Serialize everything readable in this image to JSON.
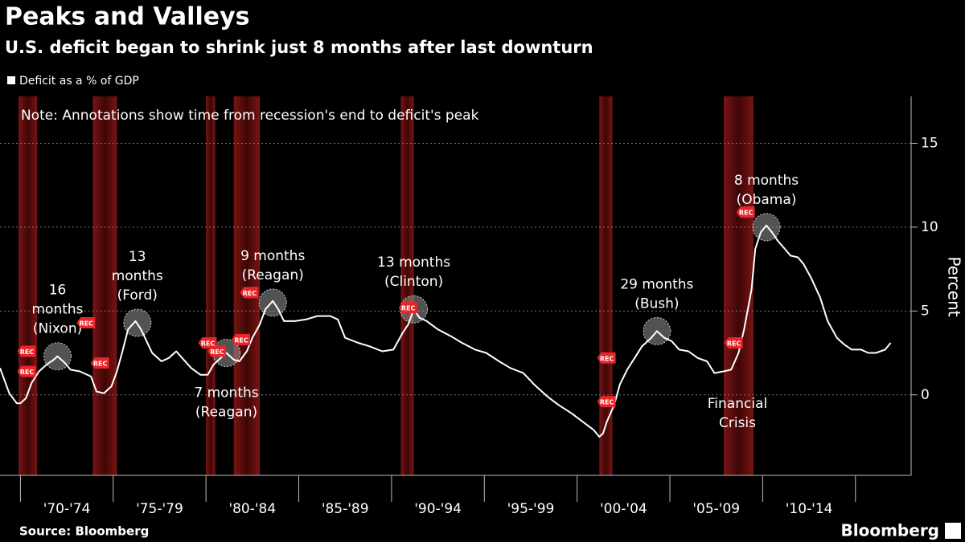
{
  "chart_data": {
    "type": "line",
    "title": "Peaks and Valleys",
    "subtitle": "U.S. deficit began to shrink just 8 months after last downturn",
    "note": "Note: Annotations show time from recession's end to deficit's peak",
    "y_label": "Percent",
    "source": "Source: Bloomberg",
    "brand": "Bloomberg",
    "xlim": [
      1968.9,
      2018
    ],
    "ylim": [
      -4.8,
      17.8
    ],
    "yticks": [
      0,
      5,
      10,
      15
    ],
    "xticks": [
      1970,
      1975,
      1980,
      1985,
      1990,
      1995,
      2000,
      2005,
      2010,
      2015
    ],
    "periods": [
      "'70-'74",
      "'75-'79",
      "'80-'84",
      "'85-'89",
      "'90-'94",
      "'95-'99",
      "'00-'04",
      "'05-'09",
      "'10-'14"
    ],
    "grid": true,
    "series": [
      {
        "name": "Deficit as a % of GDP",
        "color": "#ffffff",
        "x": [
          1968.9,
          1969.4,
          1969.8,
          1970.0,
          1970.3,
          1970.6,
          1971.0,
          1971.4,
          1971.8,
          1972.0,
          1972.4,
          1972.7,
          1973.2,
          1973.8,
          1974.1,
          1974.5,
          1974.9,
          1975.2,
          1975.5,
          1975.8,
          1976.2,
          1976.5,
          1976.8,
          1977.1,
          1977.6,
          1978.0,
          1978.4,
          1978.8,
          1979.2,
          1979.7,
          1980.1,
          1980.4,
          1980.8,
          1981.1,
          1981.5,
          1981.8,
          1982.2,
          1982.5,
          1982.9,
          1983.2,
          1983.6,
          1983.9,
          1984.2,
          1984.8,
          1985.4,
          1986.0,
          1986.7,
          1987.1,
          1987.5,
          1988.2,
          1988.8,
          1989.5,
          1990.1,
          1990.6,
          1990.9,
          1991.2,
          1991.5,
          1991.9,
          1992.5,
          1993.2,
          1993.8,
          1994.5,
          1995.1,
          1995.8,
          1996.4,
          1997.1,
          1997.7,
          1998.4,
          1999.0,
          1999.7,
          2000.3,
          2000.9,
          2001.2,
          2001.4,
          2001.6,
          2002.0,
          2002.3,
          2002.7,
          2003.1,
          2003.5,
          2004.0,
          2004.3,
          2004.7,
          2005.1,
          2005.5,
          2006.0,
          2006.5,
          2007.0,
          2007.4,
          2007.9,
          2008.3,
          2008.7,
          2009.0,
          2009.4,
          2009.6,
          2009.9,
          2010.2,
          2010.5,
          2010.8,
          2011.2,
          2011.5,
          2011.9,
          2012.2,
          2012.6,
          2013.1,
          2013.5,
          2014.0,
          2014.4,
          2014.8,
          2015.3,
          2015.7,
          2016.1,
          2016.6,
          2016.9
        ],
        "values": [
          1.6,
          0.1,
          -0.5,
          -0.5,
          -0.2,
          0.7,
          1.4,
          1.8,
          2.1,
          2.3,
          1.9,
          1.5,
          1.4,
          1.1,
          0.2,
          0.1,
          0.5,
          1.4,
          2.6,
          3.9,
          4.4,
          3.9,
          3.2,
          2.5,
          2.0,
          2.2,
          2.6,
          2.1,
          1.6,
          1.2,
          1.2,
          1.8,
          2.2,
          2.5,
          2.1,
          2.0,
          2.6,
          3.4,
          4.2,
          5.1,
          5.6,
          5.1,
          4.4,
          4.4,
          4.5,
          4.7,
          4.7,
          4.5,
          3.4,
          3.1,
          2.9,
          2.6,
          2.7,
          3.7,
          4.2,
          5.1,
          4.6,
          4.4,
          3.9,
          3.5,
          3.1,
          2.7,
          2.5,
          2.0,
          1.6,
          1.3,
          0.6,
          -0.1,
          -0.6,
          -1.1,
          -1.6,
          -2.1,
          -2.5,
          -2.3,
          -1.6,
          -0.6,
          0.6,
          1.5,
          2.2,
          2.9,
          3.4,
          3.8,
          3.4,
          3.2,
          2.7,
          2.6,
          2.2,
          2.0,
          1.3,
          1.4,
          1.5,
          2.5,
          3.9,
          6.3,
          8.7,
          9.7,
          10.1,
          9.7,
          9.2,
          8.7,
          8.3,
          8.2,
          7.8,
          7.0,
          5.8,
          4.4,
          3.4,
          3.0,
          2.7,
          2.7,
          2.5,
          2.5,
          2.7,
          3.1
        ]
      }
    ],
    "recessions": [
      [
        1969.9,
        1970.9
      ],
      [
        1973.9,
        1975.2
      ],
      [
        1980.0,
        1980.5
      ],
      [
        1981.5,
        1982.9
      ],
      [
        1990.5,
        1991.2
      ],
      [
        2001.2,
        2001.9
      ],
      [
        2007.9,
        2009.5
      ]
    ],
    "rec_markers": {
      "label": "REC",
      "points": [
        [
          1970.35,
          2.6
        ],
        [
          1970.35,
          1.4
        ],
        [
          1974.3,
          1.9
        ],
        [
          1973.55,
          4.3
        ],
        [
          1980.1,
          3.1
        ],
        [
          1980.6,
          2.6
        ],
        [
          1981.9,
          3.3
        ],
        [
          1982.35,
          6.1
        ],
        [
          1990.9,
          5.2
        ],
        [
          2001.6,
          2.2
        ],
        [
          2001.6,
          -0.4
        ],
        [
          2008.45,
          3.1
        ],
        [
          2009.1,
          10.9
        ]
      ]
    },
    "annotations": [
      {
        "text": [
          "16",
          "months",
          "(Nixon)"
        ],
        "x": 1972.0,
        "y": 2.3,
        "position": "above"
      },
      {
        "text": [
          "13",
          "months",
          "(Ford)"
        ],
        "x": 1976.3,
        "y": 4.3,
        "position": "above"
      },
      {
        "text": [
          "7 months",
          "(Reagan)"
        ],
        "x": 1981.1,
        "y": 2.5,
        "position": "below"
      },
      {
        "text": [
          "9 months",
          "(Reagan)"
        ],
        "x": 1983.6,
        "y": 5.5,
        "position": "above"
      },
      {
        "text": [
          "13 months",
          "(Clinton)"
        ],
        "x": 1991.2,
        "y": 5.1,
        "position": "above"
      },
      {
        "text": [
          "29 months",
          "(Bush)"
        ],
        "x": 2004.3,
        "y": 3.8,
        "position": "above"
      },
      {
        "text": [
          "8 months",
          "(Obama)"
        ],
        "x": 2010.2,
        "y": 10.0,
        "position": "above"
      }
    ],
    "crisis_label": [
      "Financial",
      "Crisis"
    ]
  }
}
